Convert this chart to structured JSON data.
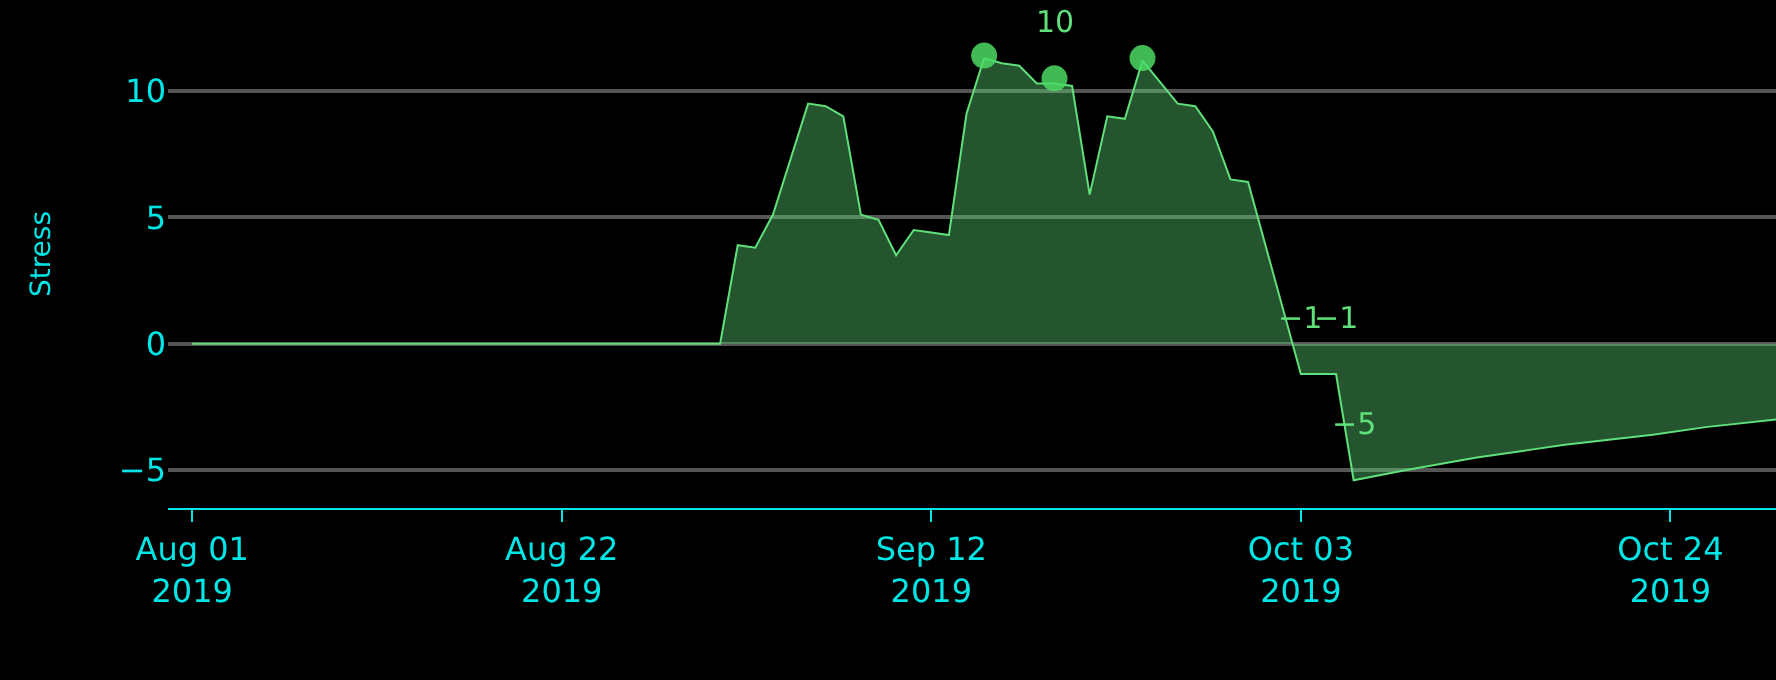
{
  "chart_data": {
    "type": "area",
    "ylabel": "Stress",
    "xlim": [
      "2019-07-30T15:00",
      "2019-10-30"
    ],
    "ylim": [
      -6.5,
      13.6
    ],
    "xticks": [
      {
        "value": "2019-08-01",
        "label": "Aug 01\n2019"
      },
      {
        "value": "2019-08-22",
        "label": "Aug 22\n2019"
      },
      {
        "value": "2019-09-12",
        "label": "Sep 12\n2019"
      },
      {
        "value": "2019-10-03",
        "label": "Oct 03\n2019"
      },
      {
        "value": "2019-10-24",
        "label": "Oct 24\n2019"
      }
    ],
    "yticks": [
      {
        "value": -5,
        "label": "−5"
      },
      0,
      5,
      10
    ],
    "grid": "y",
    "series": [
      {
        "color": "#5fe07a",
        "marker": "none",
        "x": [
          "2019-08-01",
          "2019-08-31",
          "2019-09-01",
          "2019-09-02",
          "2019-09-03",
          "2019-09-05",
          "2019-09-06",
          "2019-09-07",
          "2019-09-08",
          "2019-09-09",
          "2019-09-10",
          "2019-09-11",
          "2019-09-12",
          "2019-09-13",
          "2019-09-14",
          "2019-09-15",
          "2019-09-16",
          "2019-09-17",
          "2019-09-18",
          "2019-09-19",
          "2019-09-20",
          "2019-09-21",
          "2019-09-22",
          "2019-09-23",
          "2019-09-24",
          "2019-09-26",
          "2019-09-27",
          "2019-09-28",
          "2019-09-29",
          "2019-09-30",
          "2019-10-03",
          "2019-10-05",
          "2019-10-06",
          "2019-10-09",
          "2019-10-13",
          "2019-10-16",
          "2019-10-18",
          "2019-10-23",
          "2019-10-26",
          "2019-10-30"
        ],
        "values": [
          0,
          0,
          3.9,
          3.8,
          5.1,
          9.5,
          9.4,
          9.0,
          5.1,
          4.9,
          3.5,
          4.5,
          4.4,
          4.3,
          9.1,
          11.3,
          11.1,
          11.0,
          10.3,
          10.3,
          10.2,
          5.9,
          9.0,
          8.9,
          11.2,
          9.5,
          9.4,
          8.4,
          6.5,
          6.4,
          -1.2,
          -1.2,
          -5.4,
          -5.0,
          -4.5,
          -4.2,
          -4.0,
          -3.6,
          -3.3,
          -3.0
        ]
      },
      {
        "type": "scatter",
        "color": "#4cd964",
        "marker": "circle",
        "x": [
          "2019-09-15",
          "2019-09-19",
          "2019-09-24"
        ],
        "values": [
          11.4,
          10.5,
          11.3
        ]
      }
    ],
    "annotations": [
      {
        "text": "10",
        "x": "2019-09-19",
        "y": 10.5
      },
      {
        "text": "−1",
        "x": "2019-10-03",
        "y": -1.2
      },
      {
        "text": "−1",
        "x": "2019-10-05",
        "y": -1.2
      },
      {
        "text": "−5",
        "x": "2019-10-06",
        "y": -5.4
      }
    ]
  }
}
